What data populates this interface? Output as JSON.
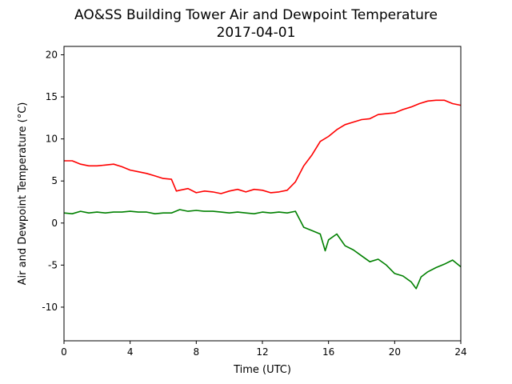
{
  "chart_data": {
    "type": "line",
    "title": "AO&SS Building Tower Air and Dewpoint Temperature",
    "subtitle": "2017-04-01",
    "xlabel": "Time (UTC)",
    "ylabel": "Air and Dewpoint Temperature (°C)",
    "xlim": [
      0,
      24
    ],
    "ylim": [
      -14,
      21
    ],
    "xticks": [
      0,
      4,
      8,
      12,
      16,
      20,
      24
    ],
    "yticks": [
      -10,
      -5,
      0,
      5,
      10,
      15,
      20
    ],
    "grid": false,
    "legend": "none",
    "series": [
      {
        "color": "#ff0000",
        "x": [
          0,
          0.5,
          1,
          1.5,
          2,
          2.5,
          3,
          3.5,
          4,
          4.5,
          5,
          5.5,
          6,
          6.5,
          6.8,
          7,
          7.5,
          8,
          8.5,
          9,
          9.5,
          10,
          10.5,
          11,
          11.5,
          12,
          12.5,
          13,
          13.5,
          14,
          14.5,
          15,
          15.5,
          16,
          16.5,
          17,
          17.5,
          18,
          18.5,
          19,
          19.5,
          20,
          20.5,
          21,
          21.5,
          22,
          22.5,
          23,
          23.5,
          24
        ],
        "values": [
          7.4,
          7.4,
          7.0,
          6.8,
          6.8,
          6.9,
          7.0,
          6.7,
          6.3,
          6.1,
          5.9,
          5.6,
          5.3,
          5.2,
          3.8,
          3.9,
          4.1,
          3.6,
          3.8,
          3.7,
          3.5,
          3.8,
          4.0,
          3.7,
          4.0,
          3.9,
          3.6,
          3.7,
          3.9,
          4.9,
          6.8,
          8.1,
          9.7,
          10.3,
          11.1,
          11.7,
          12.0,
          12.3,
          12.4,
          12.9,
          13.0,
          13.1,
          13.5,
          13.8,
          14.2,
          14.5,
          14.6,
          14.6,
          14.2,
          14.0
        ]
      },
      {
        "color": "#008000",
        "x": [
          0,
          0.5,
          1,
          1.5,
          2,
          2.5,
          3,
          3.5,
          4,
          4.5,
          5,
          5.5,
          6,
          6.5,
          7,
          7.5,
          8,
          8.5,
          9,
          9.5,
          10,
          10.5,
          11,
          11.5,
          12,
          12.5,
          13,
          13.5,
          14,
          14.5,
          15,
          15.5,
          15.8,
          16,
          16.5,
          17,
          17.5,
          18,
          18.5,
          19,
          19.5,
          20,
          20.5,
          21,
          21.3,
          21.6,
          22,
          22.5,
          23,
          23.5,
          24
        ],
        "values": [
          1.2,
          1.1,
          1.4,
          1.2,
          1.3,
          1.2,
          1.3,
          1.3,
          1.4,
          1.3,
          1.3,
          1.1,
          1.2,
          1.2,
          1.6,
          1.4,
          1.5,
          1.4,
          1.4,
          1.3,
          1.2,
          1.3,
          1.2,
          1.1,
          1.3,
          1.2,
          1.3,
          1.2,
          1.4,
          -0.5,
          -0.9,
          -1.3,
          -3.3,
          -2.0,
          -1.3,
          -2.7,
          -3.2,
          -3.9,
          -4.6,
          -4.3,
          -5.0,
          -6.0,
          -6.3,
          -7.0,
          -7.8,
          -6.4,
          -5.8,
          -5.3,
          -4.9,
          -4.4,
          -5.2
        ]
      }
    ]
  }
}
